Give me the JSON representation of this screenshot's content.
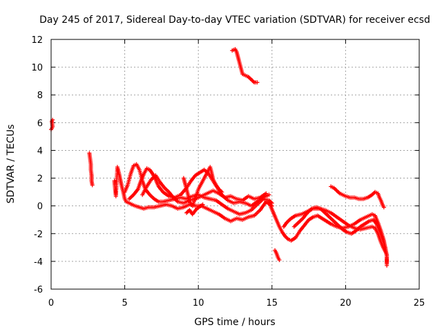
{
  "chart_data": {
    "type": "scatter",
    "title": "Day 245 of 2017, Sidereal Day-to-day VTEC variation (SDTVAR) for receiver ecsd",
    "xlabel": "GPS time / hours",
    "ylabel": "SDTVAR / TECUs",
    "xlim": [
      0,
      25
    ],
    "ylim": [
      -6,
      12
    ],
    "xticks": [
      0,
      5,
      10,
      15,
      20,
      25
    ],
    "yticks": [
      -6,
      -4,
      -2,
      0,
      2,
      4,
      6,
      8,
      10,
      12
    ],
    "grid": true,
    "marker": "+",
    "color": "#ff0000",
    "series": [
      {
        "name": "SDTVAR",
        "segments": [
          [
            [
              0.0,
              5.5
            ],
            [
              0.05,
              5.6
            ],
            [
              0.1,
              5.7
            ],
            [
              0.05,
              6.1
            ],
            [
              0.1,
              6.2
            ]
          ],
          [
            [
              2.6,
              3.8
            ],
            [
              2.65,
              3.4
            ],
            [
              2.7,
              3.0
            ],
            [
              2.7,
              2.6
            ],
            [
              2.75,
              2.2
            ],
            [
              2.75,
              1.8
            ],
            [
              2.8,
              1.5
            ]
          ],
          [
            [
              4.3,
              1.8
            ],
            [
              4.35,
              1.2
            ],
            [
              4.4,
              0.7
            ],
            [
              4.5,
              2.8
            ],
            [
              4.6,
              2.4
            ],
            [
              4.7,
              1.9
            ],
            [
              4.8,
              1.4
            ],
            [
              4.9,
              1.0
            ],
            [
              5.0,
              0.5
            ],
            [
              5.1,
              0.3
            ],
            [
              5.3,
              0.2
            ],
            [
              5.5,
              0.1
            ],
            [
              5.7,
              0.0
            ],
            [
              6.0,
              -0.1
            ],
            [
              6.3,
              -0.2
            ],
            [
              6.6,
              -0.1
            ],
            [
              7.0,
              -0.1
            ],
            [
              7.4,
              0.0
            ],
            [
              7.8,
              0.1
            ],
            [
              8.2,
              0.0
            ],
            [
              8.6,
              -0.2
            ],
            [
              9.0,
              -0.1
            ],
            [
              9.4,
              0.1
            ],
            [
              9.8,
              0.0
            ],
            [
              10.2,
              0.0
            ],
            [
              10.6,
              -0.2
            ],
            [
              11.0,
              -0.4
            ],
            [
              11.4,
              -0.6
            ],
            [
              11.8,
              -0.9
            ],
            [
              12.2,
              -1.1
            ],
            [
              12.6,
              -0.9
            ],
            [
              13.0,
              -1.0
            ],
            [
              13.4,
              -0.8
            ],
            [
              13.8,
              -0.7
            ],
            [
              14.2,
              -0.3
            ],
            [
              14.6,
              0.3
            ],
            [
              15.0,
              0.0
            ]
          ],
          [
            [
              5.0,
              1.0
            ],
            [
              5.2,
              1.5
            ],
            [
              5.4,
              2.3
            ],
            [
              5.6,
              2.9
            ],
            [
              5.8,
              3.0
            ],
            [
              6.0,
              2.6
            ],
            [
              6.2,
              1.8
            ],
            [
              6.4,
              1.2
            ],
            [
              6.7,
              0.8
            ],
            [
              7.0,
              0.5
            ],
            [
              7.3,
              0.3
            ],
            [
              7.6,
              0.3
            ],
            [
              8.0,
              0.4
            ],
            [
              8.4,
              0.5
            ],
            [
              8.8,
              0.6
            ],
            [
              9.2,
              0.5
            ],
            [
              9.6,
              0.7
            ],
            [
              10.0,
              0.8
            ],
            [
              10.4,
              0.6
            ],
            [
              10.8,
              0.5
            ],
            [
              11.2,
              0.4
            ],
            [
              11.6,
              0.1
            ],
            [
              12.0,
              -0.2
            ],
            [
              12.4,
              -0.4
            ],
            [
              12.8,
              -0.6
            ],
            [
              13.2,
              -0.5
            ],
            [
              13.6,
              -0.3
            ],
            [
              14.0,
              0.1
            ],
            [
              14.4,
              0.5
            ],
            [
              14.8,
              0.4
            ],
            [
              15.0,
              0.2
            ]
          ],
          [
            [
              5.3,
              0.5
            ],
            [
              5.6,
              0.8
            ],
            [
              5.9,
              1.2
            ],
            [
              6.1,
              1.8
            ],
            [
              6.3,
              2.3
            ],
            [
              6.5,
              2.7
            ],
            [
              6.7,
              2.6
            ],
            [
              6.9,
              2.3
            ],
            [
              7.1,
              1.9
            ],
            [
              7.3,
              1.4
            ],
            [
              7.6,
              1.0
            ],
            [
              8.0,
              0.7
            ],
            [
              8.4,
              0.6
            ],
            [
              8.8,
              0.8
            ],
            [
              9.2,
              1.3
            ],
            [
              9.5,
              1.8
            ],
            [
              9.8,
              2.2
            ],
            [
              10.1,
              2.4
            ],
            [
              10.4,
              2.6
            ],
            [
              10.7,
              2.3
            ],
            [
              11.0,
              1.8
            ],
            [
              11.3,
              1.3
            ],
            [
              11.6,
              0.8
            ],
            [
              12.0,
              0.4
            ],
            [
              12.4,
              0.2
            ],
            [
              12.8,
              0.3
            ],
            [
              13.2,
              0.2
            ],
            [
              13.6,
              0.0
            ],
            [
              14.0,
              0.3
            ],
            [
              14.4,
              0.6
            ],
            [
              14.8,
              0.8
            ]
          ],
          [
            [
              6.2,
              0.8
            ],
            [
              6.5,
              1.4
            ],
            [
              6.8,
              1.9
            ],
            [
              7.1,
              2.2
            ],
            [
              7.4,
              1.7
            ],
            [
              7.7,
              1.3
            ],
            [
              8.0,
              1.0
            ],
            [
              8.3,
              0.6
            ],
            [
              8.6,
              0.3
            ],
            [
              9.0,
              0.2
            ],
            [
              9.4,
              0.4
            ],
            [
              9.8,
              0.5
            ],
            [
              10.2,
              0.7
            ],
            [
              10.6,
              0.9
            ],
            [
              11.0,
              1.1
            ],
            [
              11.4,
              0.9
            ],
            [
              11.8,
              0.6
            ],
            [
              12.2,
              0.7
            ],
            [
              12.6,
              0.5
            ],
            [
              13.0,
              0.4
            ],
            [
              13.4,
              0.7
            ],
            [
              13.8,
              0.5
            ],
            [
              14.2,
              0.6
            ],
            [
              14.6,
              0.9
            ]
          ],
          [
            [
              9.0,
              2.0
            ],
            [
              9.1,
              1.6
            ],
            [
              9.2,
              1.2
            ],
            [
              9.3,
              0.8
            ],
            [
              9.4,
              0.3
            ],
            [
              9.6,
              0.0
            ],
            [
              10.0,
              1.2
            ],
            [
              10.2,
              1.6
            ],
            [
              10.4,
              2.0
            ],
            [
              10.6,
              2.4
            ],
            [
              10.8,
              2.8
            ],
            [
              10.9,
              2.4
            ],
            [
              11.0,
              1.9
            ],
            [
              11.2,
              1.5
            ],
            [
              11.4,
              1.2
            ],
            [
              11.6,
              1.0
            ]
          ],
          [
            [
              9.2,
              -0.5
            ],
            [
              9.4,
              -0.3
            ],
            [
              9.6,
              -0.6
            ],
            [
              9.9,
              -0.2
            ],
            [
              10.3,
              0.1
            ]
          ],
          [
            [
              12.3,
              11.2
            ],
            [
              12.5,
              11.3
            ],
            [
              12.6,
              11.1
            ],
            [
              12.7,
              10.7
            ],
            [
              12.8,
              10.3
            ],
            [
              12.9,
              9.9
            ],
            [
              13.0,
              9.5
            ],
            [
              13.2,
              9.4
            ],
            [
              13.4,
              9.3
            ],
            [
              13.6,
              9.1
            ],
            [
              13.8,
              8.9
            ],
            [
              14.0,
              8.9
            ]
          ],
          [
            [
              15.2,
              -3.2
            ],
            [
              15.3,
              -3.4
            ],
            [
              15.4,
              -3.7
            ],
            [
              15.5,
              -3.9
            ]
          ],
          [
            [
              14.9,
              0.0
            ],
            [
              15.1,
              -0.5
            ],
            [
              15.3,
              -1.0
            ],
            [
              15.5,
              -1.5
            ],
            [
              15.7,
              -1.9
            ],
            [
              15.9,
              -2.2
            ],
            [
              16.1,
              -2.4
            ],
            [
              16.3,
              -2.5
            ],
            [
              16.6,
              -2.3
            ],
            [
              16.9,
              -1.8
            ],
            [
              17.2,
              -1.4
            ],
            [
              17.5,
              -1.0
            ],
            [
              17.8,
              -0.8
            ],
            [
              18.1,
              -0.7
            ],
            [
              18.4,
              -0.9
            ],
            [
              18.7,
              -1.1
            ],
            [
              19.0,
              -1.3
            ],
            [
              19.4,
              -1.5
            ],
            [
              19.8,
              -1.6
            ],
            [
              20.2,
              -1.5
            ],
            [
              20.6,
              -1.3
            ],
            [
              21.0,
              -1.0
            ],
            [
              21.4,
              -0.8
            ],
            [
              21.8,
              -0.6
            ],
            [
              22.0,
              -0.7
            ],
            [
              22.2,
              -1.2
            ],
            [
              22.4,
              -1.8
            ],
            [
              22.6,
              -2.5
            ],
            [
              22.7,
              -3.1
            ],
            [
              22.8,
              -3.6
            ],
            [
              22.8,
              -4.1
            ]
          ],
          [
            [
              15.8,
              -1.5
            ],
            [
              16.0,
              -1.2
            ],
            [
              16.3,
              -0.9
            ],
            [
              16.6,
              -0.7
            ],
            [
              17.0,
              -0.6
            ],
            [
              17.4,
              -0.4
            ],
            [
              17.8,
              -0.2
            ],
            [
              18.2,
              -0.2
            ],
            [
              18.6,
              -0.3
            ],
            [
              19.0,
              -0.5
            ],
            [
              19.4,
              -0.8
            ],
            [
              19.8,
              -1.1
            ],
            [
              20.2,
              -1.4
            ],
            [
              20.6,
              -1.6
            ],
            [
              21.0,
              -1.7
            ],
            [
              21.4,
              -1.6
            ],
            [
              21.8,
              -1.5
            ],
            [
              22.0,
              -1.6
            ],
            [
              22.2,
              -2.0
            ],
            [
              22.4,
              -2.6
            ],
            [
              22.6,
              -3.1
            ],
            [
              22.8,
              -3.5
            ]
          ],
          [
            [
              16.5,
              -1.5
            ],
            [
              16.8,
              -1.2
            ],
            [
              17.1,
              -0.9
            ],
            [
              17.4,
              -0.5
            ],
            [
              17.7,
              -0.2
            ],
            [
              18.0,
              -0.1
            ],
            [
              18.3,
              -0.2
            ],
            [
              18.6,
              -0.5
            ],
            [
              18.9,
              -0.8
            ],
            [
              19.2,
              -1.1
            ],
            [
              19.5,
              -1.4
            ],
            [
              19.8,
              -1.7
            ],
            [
              20.1,
              -1.9
            ],
            [
              20.4,
              -2.0
            ],
            [
              20.7,
              -1.8
            ],
            [
              21.0,
              -1.5
            ],
            [
              21.3,
              -1.3
            ],
            [
              21.6,
              -1.1
            ],
            [
              21.9,
              -1.0
            ],
            [
              22.1,
              -1.3
            ],
            [
              22.3,
              -1.8
            ],
            [
              22.5,
              -2.4
            ],
            [
              22.7,
              -3.0
            ],
            [
              22.8,
              -3.6
            ],
            [
              22.8,
              -4.3
            ]
          ],
          [
            [
              19.0,
              1.4
            ],
            [
              19.2,
              1.3
            ],
            [
              19.4,
              1.1
            ],
            [
              19.6,
              0.9
            ],
            [
              19.8,
              0.8
            ],
            [
              20.0,
              0.7
            ],
            [
              20.3,
              0.6
            ],
            [
              20.6,
              0.6
            ],
            [
              20.9,
              0.5
            ],
            [
              21.2,
              0.5
            ],
            [
              21.5,
              0.6
            ],
            [
              21.8,
              0.8
            ],
            [
              22.0,
              1.0
            ],
            [
              22.2,
              0.9
            ],
            [
              22.3,
              0.6
            ],
            [
              22.4,
              0.4
            ],
            [
              22.5,
              0.1
            ],
            [
              22.6,
              -0.1
            ]
          ]
        ]
      }
    ]
  }
}
